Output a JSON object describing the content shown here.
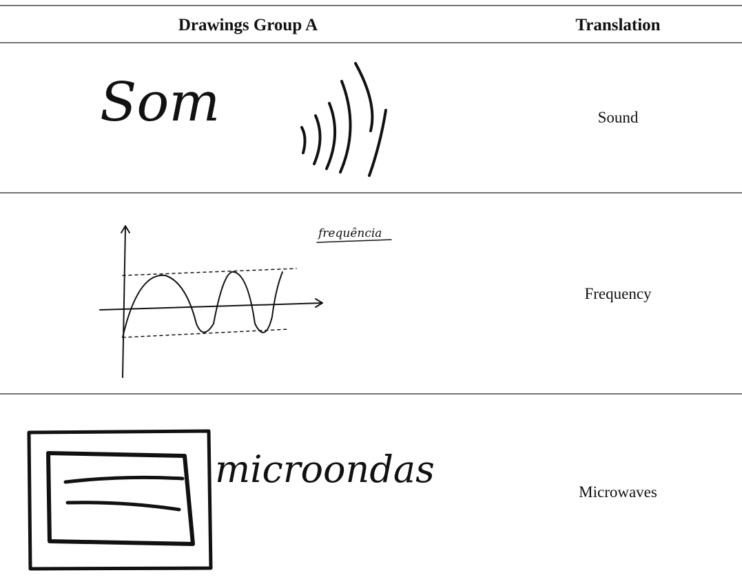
{
  "table": {
    "header": [
      "Drawings Group A",
      "Translation"
    ],
    "rows": [
      {
        "drawing_text": "Som",
        "translation": "Sound"
      },
      {
        "drawing_text": "frequência",
        "translation": "Frequency"
      },
      {
        "drawing_text": "microondas",
        "translation": "Microwaves"
      }
    ]
  }
}
